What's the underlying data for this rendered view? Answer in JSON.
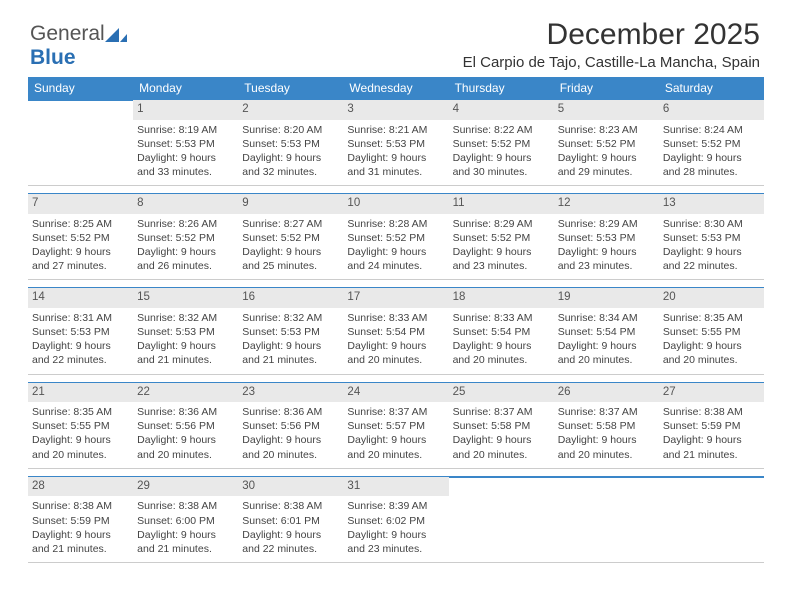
{
  "logo": {
    "text1": "General",
    "text2": "Blue"
  },
  "header": {
    "title": "December 2025",
    "subtitle": "El Carpio de Tajo, Castille-La Mancha, Spain"
  },
  "colors": {
    "header_bg": "#3a86c8",
    "header_fg": "#ffffff",
    "daynum_bg": "#e9e9e9",
    "body_fg": "#444444"
  },
  "days_of_week": [
    "Sunday",
    "Monday",
    "Tuesday",
    "Wednesday",
    "Thursday",
    "Friday",
    "Saturday"
  ],
  "weeks": [
    [
      null,
      {
        "n": "1",
        "sr": "8:19 AM",
        "ss": "5:53 PM",
        "dl": "9 hours and 33 minutes."
      },
      {
        "n": "2",
        "sr": "8:20 AM",
        "ss": "5:53 PM",
        "dl": "9 hours and 32 minutes."
      },
      {
        "n": "3",
        "sr": "8:21 AM",
        "ss": "5:53 PM",
        "dl": "9 hours and 31 minutes."
      },
      {
        "n": "4",
        "sr": "8:22 AM",
        "ss": "5:52 PM",
        "dl": "9 hours and 30 minutes."
      },
      {
        "n": "5",
        "sr": "8:23 AM",
        "ss": "5:52 PM",
        "dl": "9 hours and 29 minutes."
      },
      {
        "n": "6",
        "sr": "8:24 AM",
        "ss": "5:52 PM",
        "dl": "9 hours and 28 minutes."
      }
    ],
    [
      {
        "n": "7",
        "sr": "8:25 AM",
        "ss": "5:52 PM",
        "dl": "9 hours and 27 minutes."
      },
      {
        "n": "8",
        "sr": "8:26 AM",
        "ss": "5:52 PM",
        "dl": "9 hours and 26 minutes."
      },
      {
        "n": "9",
        "sr": "8:27 AM",
        "ss": "5:52 PM",
        "dl": "9 hours and 25 minutes."
      },
      {
        "n": "10",
        "sr": "8:28 AM",
        "ss": "5:52 PM",
        "dl": "9 hours and 24 minutes."
      },
      {
        "n": "11",
        "sr": "8:29 AM",
        "ss": "5:52 PM",
        "dl": "9 hours and 23 minutes."
      },
      {
        "n": "12",
        "sr": "8:29 AM",
        "ss": "5:53 PM",
        "dl": "9 hours and 23 minutes."
      },
      {
        "n": "13",
        "sr": "8:30 AM",
        "ss": "5:53 PM",
        "dl": "9 hours and 22 minutes."
      }
    ],
    [
      {
        "n": "14",
        "sr": "8:31 AM",
        "ss": "5:53 PM",
        "dl": "9 hours and 22 minutes."
      },
      {
        "n": "15",
        "sr": "8:32 AM",
        "ss": "5:53 PM",
        "dl": "9 hours and 21 minutes."
      },
      {
        "n": "16",
        "sr": "8:32 AM",
        "ss": "5:53 PM",
        "dl": "9 hours and 21 minutes."
      },
      {
        "n": "17",
        "sr": "8:33 AM",
        "ss": "5:54 PM",
        "dl": "9 hours and 20 minutes."
      },
      {
        "n": "18",
        "sr": "8:33 AM",
        "ss": "5:54 PM",
        "dl": "9 hours and 20 minutes."
      },
      {
        "n": "19",
        "sr": "8:34 AM",
        "ss": "5:54 PM",
        "dl": "9 hours and 20 minutes."
      },
      {
        "n": "20",
        "sr": "8:35 AM",
        "ss": "5:55 PM",
        "dl": "9 hours and 20 minutes."
      }
    ],
    [
      {
        "n": "21",
        "sr": "8:35 AM",
        "ss": "5:55 PM",
        "dl": "9 hours and 20 minutes."
      },
      {
        "n": "22",
        "sr": "8:36 AM",
        "ss": "5:56 PM",
        "dl": "9 hours and 20 minutes."
      },
      {
        "n": "23",
        "sr": "8:36 AM",
        "ss": "5:56 PM",
        "dl": "9 hours and 20 minutes."
      },
      {
        "n": "24",
        "sr": "8:37 AM",
        "ss": "5:57 PM",
        "dl": "9 hours and 20 minutes."
      },
      {
        "n": "25",
        "sr": "8:37 AM",
        "ss": "5:58 PM",
        "dl": "9 hours and 20 minutes."
      },
      {
        "n": "26",
        "sr": "8:37 AM",
        "ss": "5:58 PM",
        "dl": "9 hours and 20 minutes."
      },
      {
        "n": "27",
        "sr": "8:38 AM",
        "ss": "5:59 PM",
        "dl": "9 hours and 21 minutes."
      }
    ],
    [
      {
        "n": "28",
        "sr": "8:38 AM",
        "ss": "5:59 PM",
        "dl": "9 hours and 21 minutes."
      },
      {
        "n": "29",
        "sr": "8:38 AM",
        "ss": "6:00 PM",
        "dl": "9 hours and 21 minutes."
      },
      {
        "n": "30",
        "sr": "8:38 AM",
        "ss": "6:01 PM",
        "dl": "9 hours and 22 minutes."
      },
      {
        "n": "31",
        "sr": "8:39 AM",
        "ss": "6:02 PM",
        "dl": "9 hours and 23 minutes."
      },
      null,
      null,
      null
    ]
  ],
  "labels": {
    "sunrise": "Sunrise:",
    "sunset": "Sunset:",
    "daylight": "Daylight:"
  }
}
